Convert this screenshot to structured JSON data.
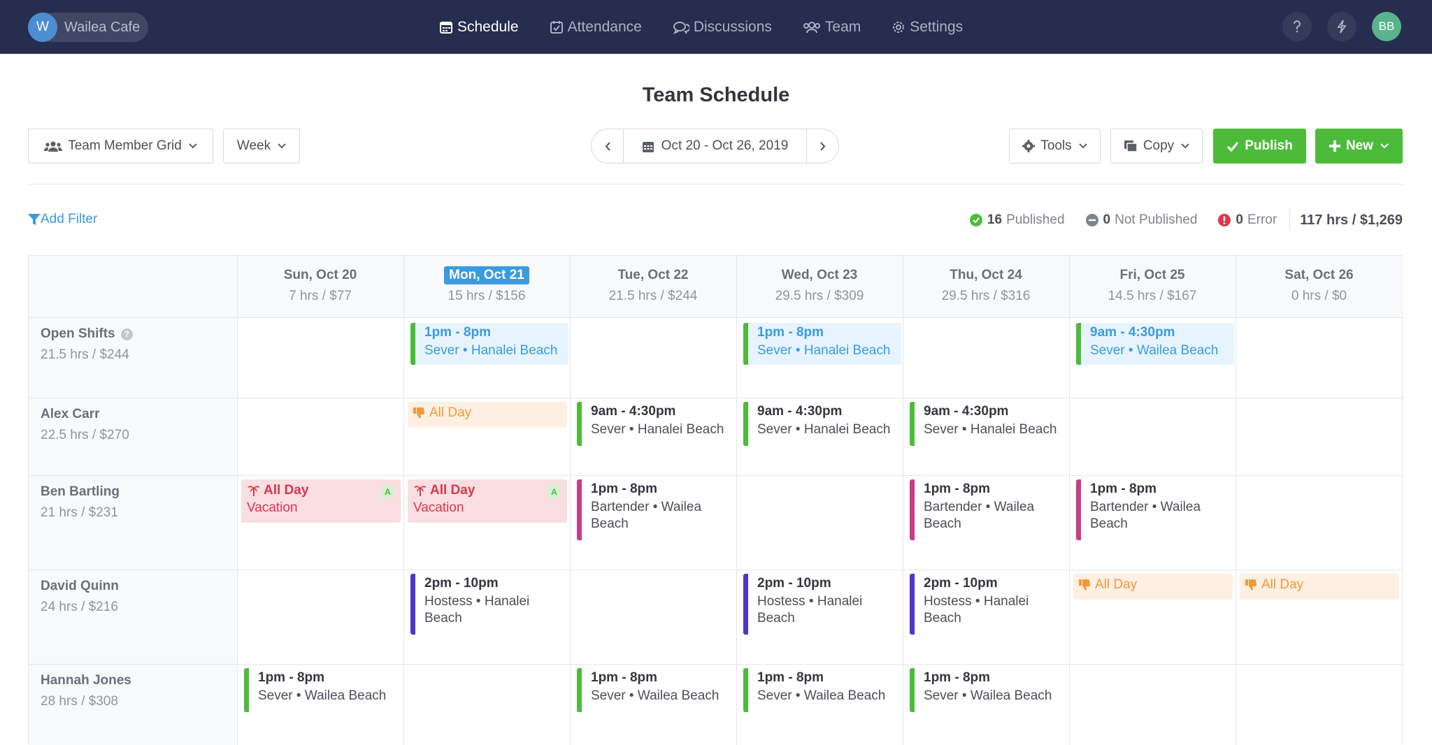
{
  "brand": {
    "initial": "W",
    "name": "Wailea Cafe"
  },
  "nav": [
    "Schedule",
    "Attendance",
    "Discussions",
    "Team",
    "Settings"
  ],
  "user_initials": "BB",
  "page_title": "Team Schedule",
  "toolbar": {
    "view": "Team Member Grid",
    "range": "Week",
    "date_range": "Oct 20 - Oct 26, 2019",
    "tools": "Tools",
    "copy": "Copy",
    "publish": "Publish",
    "new": "New"
  },
  "filter_label": "Add Filter",
  "stats": {
    "published_count": "16",
    "published_label": "Published",
    "not_published_count": "0",
    "not_published_label": "Not Published",
    "error_count": "0",
    "error_label": "Error",
    "total": "117 hrs / $1,269"
  },
  "colors": {
    "nav_bg": "#262d4e",
    "green": "#4dbb3a",
    "blue": "#3a9be0",
    "pink": "#c83c8a",
    "purple": "#4e36c9",
    "orange": "#f0993c",
    "red": "#d9374b"
  },
  "days": [
    {
      "label": "Sun, Oct 20",
      "hours": "7 hrs / $77"
    },
    {
      "label": "Mon, Oct 21",
      "hours": "15 hrs / $156",
      "today": true
    },
    {
      "label": "Tue, Oct 22",
      "hours": "21.5 hrs / $244"
    },
    {
      "label": "Wed, Oct 23",
      "hours": "29.5 hrs / $309"
    },
    {
      "label": "Thu, Oct 24",
      "hours": "29.5 hrs / $316"
    },
    {
      "label": "Fri, Oct 25",
      "hours": "14.5 hrs / $167"
    },
    {
      "label": "Sat, Oct 26",
      "hours": "0 hrs / $0"
    }
  ],
  "rows": [
    {
      "name": "Open Shifts",
      "hours": "21.5 hrs / $244",
      "help": "?"
    },
    {
      "name": "Alex Carr",
      "hours": "22.5 hrs / $270"
    },
    {
      "name": "Ben Bartling",
      "hours": "21 hrs / $231"
    },
    {
      "name": "David Quinn",
      "hours": "24 hrs / $216"
    },
    {
      "name": "Hannah Jones",
      "hours": "28 hrs / $308"
    }
  ],
  "entries": {
    "open_mon": {
      "time": "1pm - 8pm",
      "role": "Sever • Hanalei Beach"
    },
    "open_wed": {
      "time": "1pm - 8pm",
      "role": "Sever • Hanalei Beach"
    },
    "open_fri": {
      "time": "9am - 4:30pm",
      "role": "Sever • Wailea Beach"
    },
    "alex_mon": {
      "label": "All Day"
    },
    "alex_tue": {
      "time": "9am - 4:30pm",
      "role": "Sever • Hanalei Beach"
    },
    "alex_wed": {
      "time": "9am - 4:30pm",
      "role": "Sever • Hanalei Beach"
    },
    "alex_thu": {
      "time": "9am - 4:30pm",
      "role": "Sever • Hanalei Beach"
    },
    "ben_sun": {
      "label": "All Day",
      "type": "Vacation",
      "badge": "A"
    },
    "ben_mon": {
      "label": "All Day",
      "type": "Vacation",
      "badge": "A"
    },
    "ben_tue": {
      "time": "1pm - 8pm",
      "role": "Bartender • Wailea Beach"
    },
    "ben_thu": {
      "time": "1pm - 8pm",
      "role": "Bartender • Wailea Beach"
    },
    "ben_fri": {
      "time": "1pm - 8pm",
      "role": "Bartender • Wailea Beach"
    },
    "david_mon": {
      "time": "2pm - 10pm",
      "role": "Hostess • Hanalei Beach"
    },
    "david_wed": {
      "time": "2pm - 10pm",
      "role": "Hostess • Hanalei Beach"
    },
    "david_thu": {
      "time": "2pm - 10pm",
      "role": "Hostess • Hanalei Beach"
    },
    "david_fri": {
      "label": "All Day"
    },
    "david_sat": {
      "label": "All Day"
    },
    "hannah_sun": {
      "time": "1pm - 8pm",
      "role": "Sever • Wailea Beach"
    },
    "hannah_tue": {
      "time": "1pm - 8pm",
      "role": "Sever • Wailea Beach"
    },
    "hannah_wed": {
      "time": "1pm - 8pm",
      "role": "Sever • Wailea Beach"
    },
    "hannah_thu": {
      "time": "1pm - 8pm",
      "role": "Sever • Wailea Beach"
    }
  }
}
